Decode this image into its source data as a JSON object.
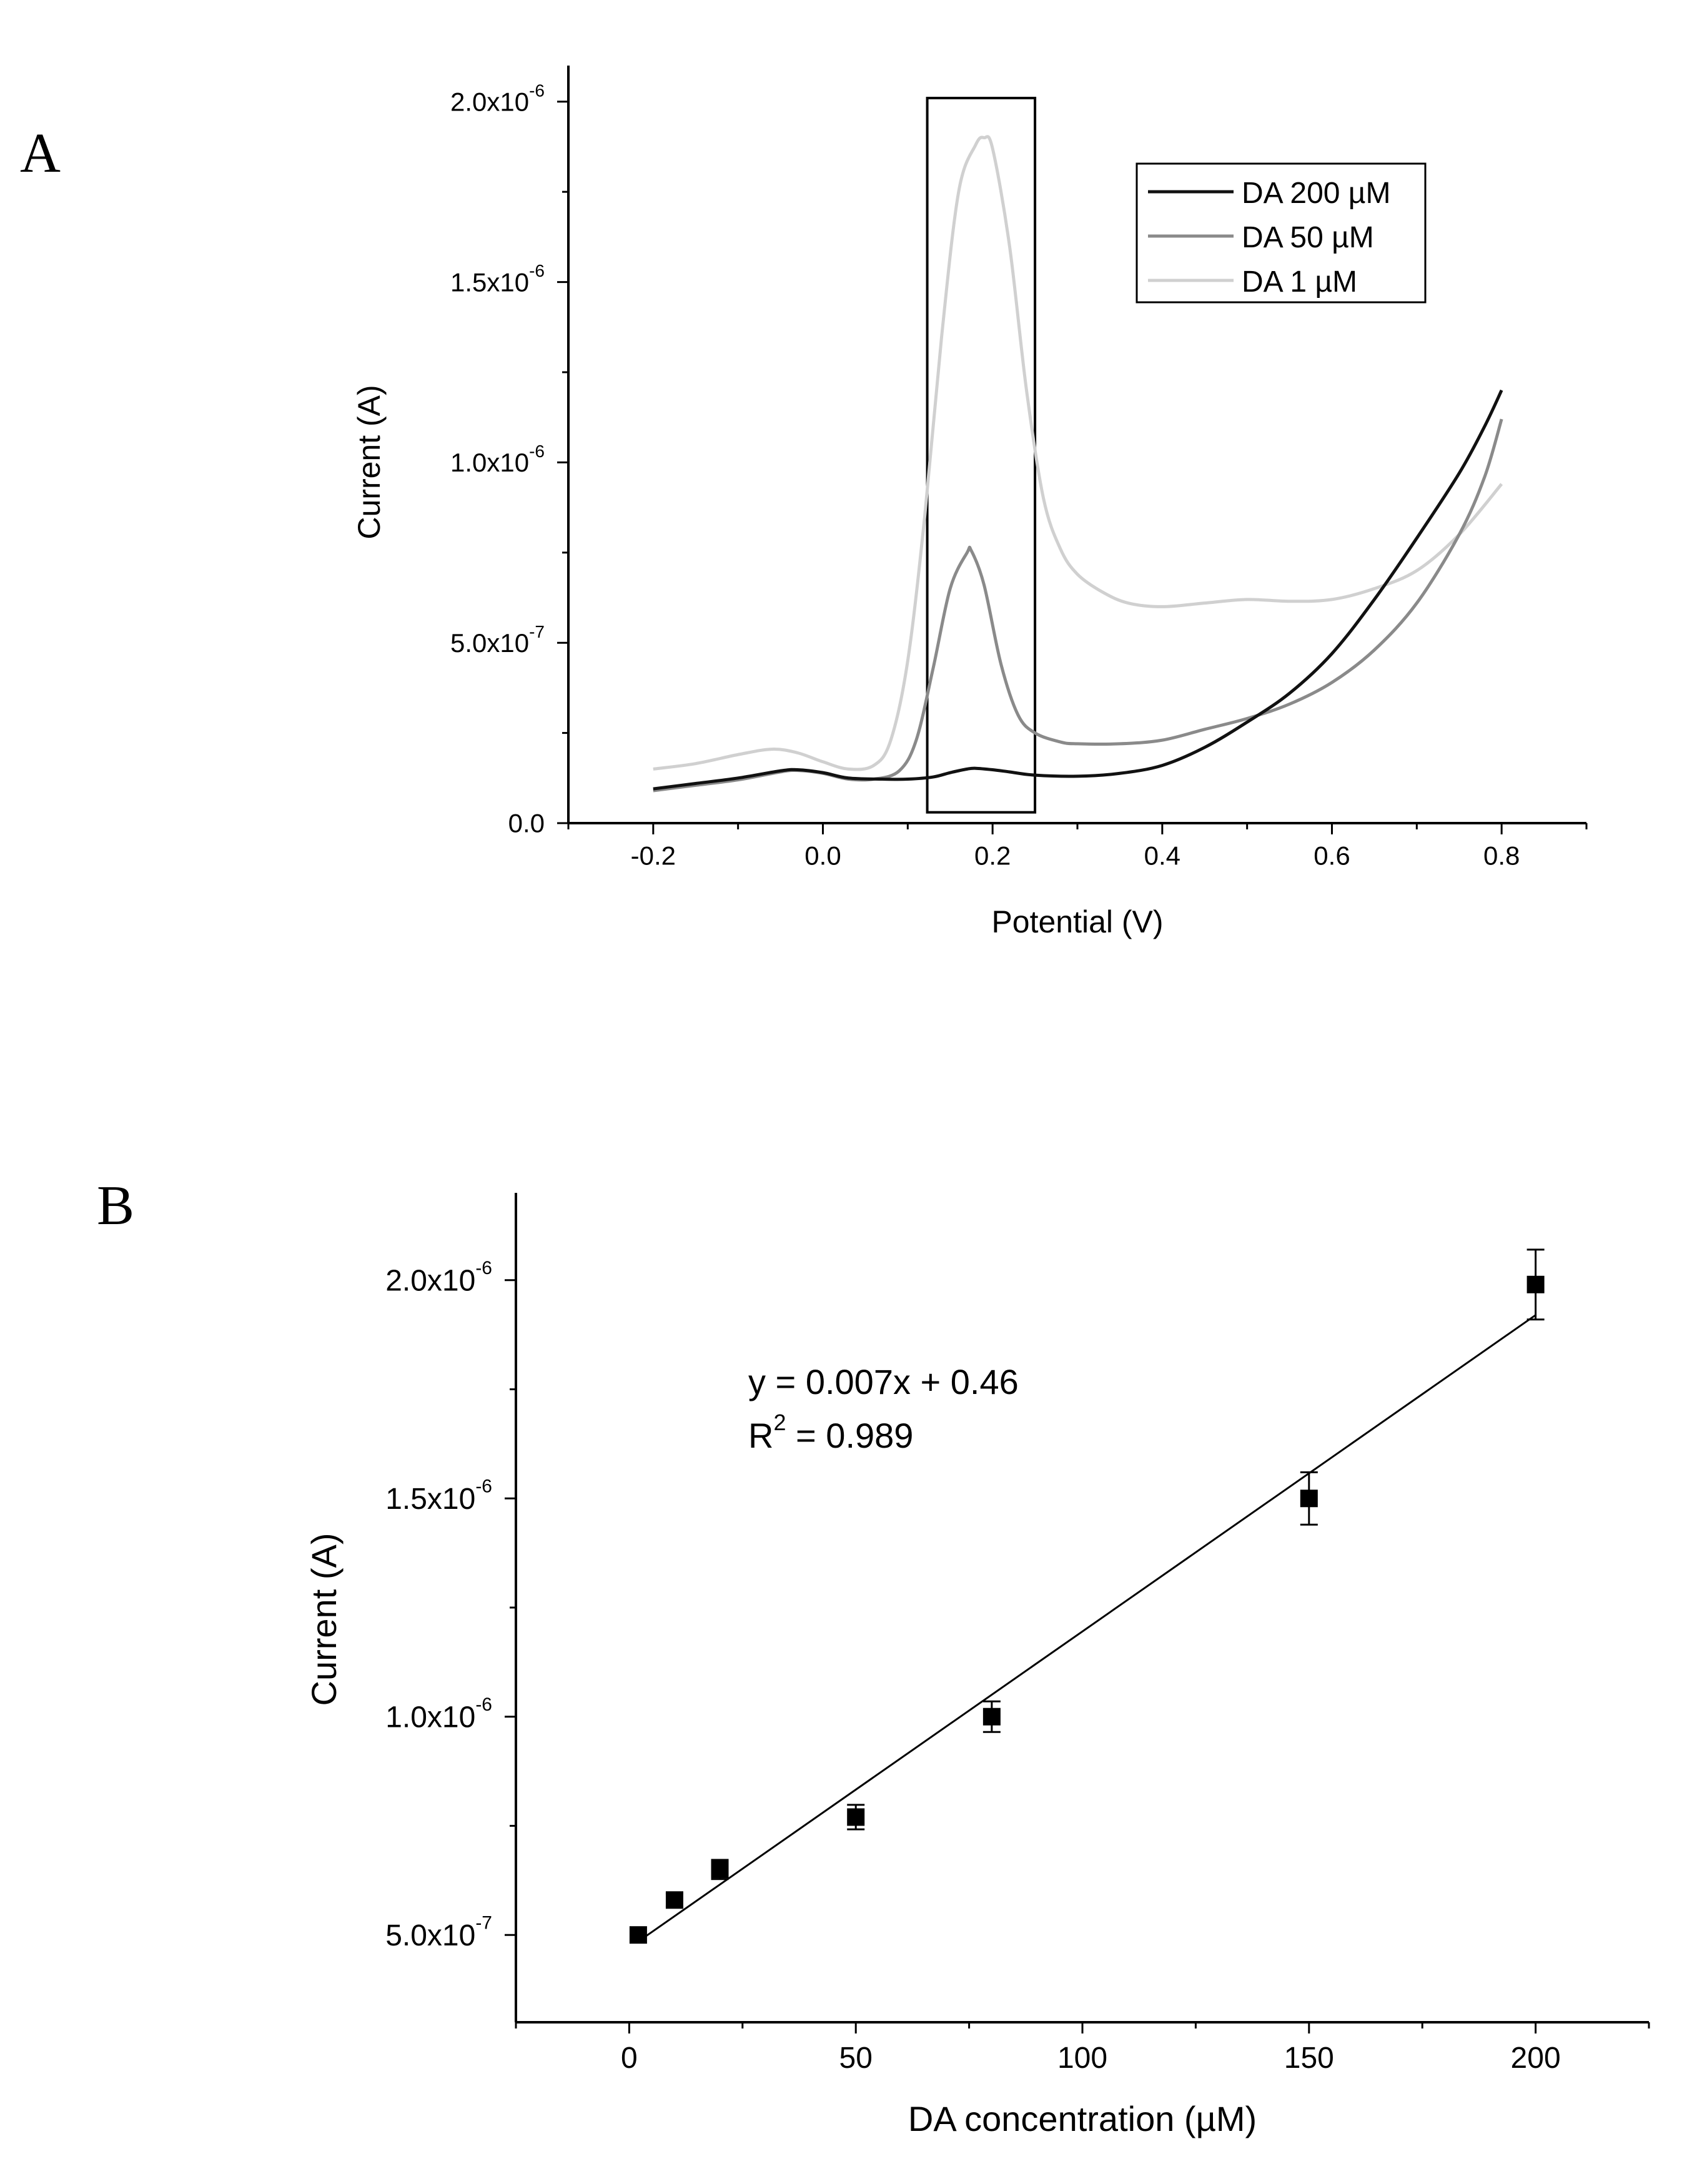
{
  "panels": {
    "a": {
      "label": "A"
    },
    "b": {
      "label": "B"
    }
  },
  "chart_data": [
    {
      "id": "a",
      "type": "line",
      "xlabel": "Potential (V)",
      "ylabel": "Current (A)",
      "xlim": [
        -0.3,
        0.9
      ],
      "ylim": [
        0,
        2.1e-06
      ],
      "xticks": [
        {
          "v": -0.2,
          "label": "-0.2"
        },
        {
          "v": 0.0,
          "label": "0.0"
        },
        {
          "v": 0.2,
          "label": "0.2"
        },
        {
          "v": 0.4,
          "label": "0.4"
        },
        {
          "v": 0.6,
          "label": "0.6"
        },
        {
          "v": 0.8,
          "label": "0.8"
        }
      ],
      "yticks": [
        {
          "v": 0,
          "mant": "0.0",
          "exp": ""
        },
        {
          "v": 5e-07,
          "mant": "5.0x10",
          "exp": "-7"
        },
        {
          "v": 1e-06,
          "mant": "1.0x10",
          "exp": "-6"
        },
        {
          "v": 1.5e-06,
          "mant": "1.5x10",
          "exp": "-6"
        },
        {
          "v": 2e-06,
          "mant": "2.0x10",
          "exp": "-6"
        }
      ],
      "highlight_box": {
        "x0": 0.123,
        "x1": 0.25,
        "y0": 3e-08,
        "y1": 2.01e-06
      },
      "legend_position": "top-right",
      "series": [
        {
          "name": "DA 200 µM",
          "color": "#111111",
          "x": [
            -0.2,
            -0.15,
            -0.1,
            -0.05,
            -0.03,
            0.0,
            0.03,
            0.07,
            0.1,
            0.13,
            0.15,
            0.17,
            0.18,
            0.2,
            0.22,
            0.25,
            0.3,
            0.35,
            0.4,
            0.45,
            0.5,
            0.55,
            0.6,
            0.65,
            0.7,
            0.75,
            0.78,
            0.8
          ],
          "y": [
            9.5e-08,
            1.1e-07,
            1.25e-07,
            1.45e-07,
            1.48e-07,
            1.4e-07,
            1.25e-07,
            1.22e-07,
            1.22e-07,
            1.28e-07,
            1.4e-07,
            1.5e-07,
            1.52e-07,
            1.48e-07,
            1.42e-07,
            1.33e-07,
            1.3e-07,
            1.38e-07,
            1.6e-07,
            2.1e-07,
            2.8e-07,
            3.6e-07,
            4.7e-07,
            6.2e-07,
            7.9e-07,
            9.7e-07,
            1.1e-06,
            1.2e-06
          ]
        },
        {
          "name": "DA 50 µM",
          "color": "#8a8a8a",
          "x": [
            -0.2,
            -0.15,
            -0.1,
            -0.05,
            -0.03,
            0.0,
            0.03,
            0.06,
            0.09,
            0.11,
            0.13,
            0.15,
            0.17,
            0.175,
            0.19,
            0.21,
            0.23,
            0.25,
            0.28,
            0.3,
            0.35,
            0.4,
            0.45,
            0.5,
            0.55,
            0.6,
            0.65,
            0.7,
            0.75,
            0.78,
            0.8
          ],
          "y": [
            9e-08,
            1.05e-07,
            1.2e-07,
            1.42e-07,
            1.46e-07,
            1.38e-07,
            1.22e-07,
            1.22e-07,
            1.45e-07,
            2.3e-07,
            4.3e-07,
            6.5e-07,
            7.5e-07,
            7.55e-07,
            6.6e-07,
            4.4e-07,
            3e-07,
            2.5e-07,
            2.25e-07,
            2.2e-07,
            2.2e-07,
            2.3e-07,
            2.6e-07,
            2.9e-07,
            3.3e-07,
            3.9e-07,
            4.8e-07,
            6.1e-07,
            8e-07,
            9.6e-07,
            1.12e-06
          ]
        },
        {
          "name": "DA 1 µM",
          "color": "#d0d0d0",
          "x": [
            -0.2,
            -0.15,
            -0.1,
            -0.06,
            -0.03,
            0.0,
            0.03,
            0.06,
            0.08,
            0.1,
            0.12,
            0.14,
            0.16,
            0.18,
            0.19,
            0.2,
            0.22,
            0.24,
            0.26,
            0.28,
            0.3,
            0.33,
            0.36,
            0.4,
            0.45,
            0.5,
            0.55,
            0.6,
            0.65,
            0.7,
            0.75,
            0.8
          ],
          "y": [
            1.5e-07,
            1.65e-07,
            1.9e-07,
            2.05e-07,
            1.95e-07,
            1.7e-07,
            1.5e-07,
            1.6e-07,
            2.3e-07,
            4.5e-07,
            8.5e-07,
            1.35e-06,
            1.75e-06,
            1.88e-06,
            1.9e-06,
            1.87e-06,
            1.6e-06,
            1.2e-06,
            9e-07,
            7.6e-07,
            6.9e-07,
            6.4e-07,
            6.1e-07,
            6e-07,
            6.1e-07,
            6.2e-07,
            6.15e-07,
            6.2e-07,
            6.5e-07,
            7e-07,
            8e-07,
            9.4e-07
          ]
        }
      ]
    },
    {
      "id": "b",
      "type": "scatter",
      "xlabel": "DA concentration (µM)",
      "ylabel": "Current (A)",
      "xlim": [
        -25,
        225
      ],
      "ylim": [
        3e-07,
        2.2e-06
      ],
      "xticks": [
        {
          "v": 0,
          "label": "0"
        },
        {
          "v": 50,
          "label": "50"
        },
        {
          "v": 100,
          "label": "100"
        },
        {
          "v": 150,
          "label": "150"
        },
        {
          "v": 200,
          "label": "200"
        }
      ],
      "yticks": [
        {
          "v": 5e-07,
          "mant": "5.0x10",
          "exp": "-7"
        },
        {
          "v": 1e-06,
          "mant": "1.0x10",
          "exp": "-6"
        },
        {
          "v": 1.5e-06,
          "mant": "1.5x10",
          "exp": "-6"
        },
        {
          "v": 2e-06,
          "mant": "2.0x10",
          "exp": "-6"
        }
      ],
      "points": {
        "x": [
          2,
          10,
          20,
          50,
          80,
          150,
          200
        ],
        "y": [
          5e-07,
          5.8e-07,
          6.5e-07,
          7.7e-07,
          1e-06,
          1.5e-06,
          1.99e-06
        ],
        "err": [
          0,
          1.5e-08,
          2.2e-08,
          2.8e-08,
          3.5e-08,
          6e-08,
          8e-08
        ]
      },
      "fit_line": {
        "x": [
          2,
          200
        ],
        "y": [
          4.85e-07,
          1.92e-06
        ]
      },
      "equation_line1": "y = 0.007x + 0.46",
      "equation_r_base": "R",
      "equation_r_sup": "2",
      "equation_r_rest": " = 0.989"
    }
  ]
}
